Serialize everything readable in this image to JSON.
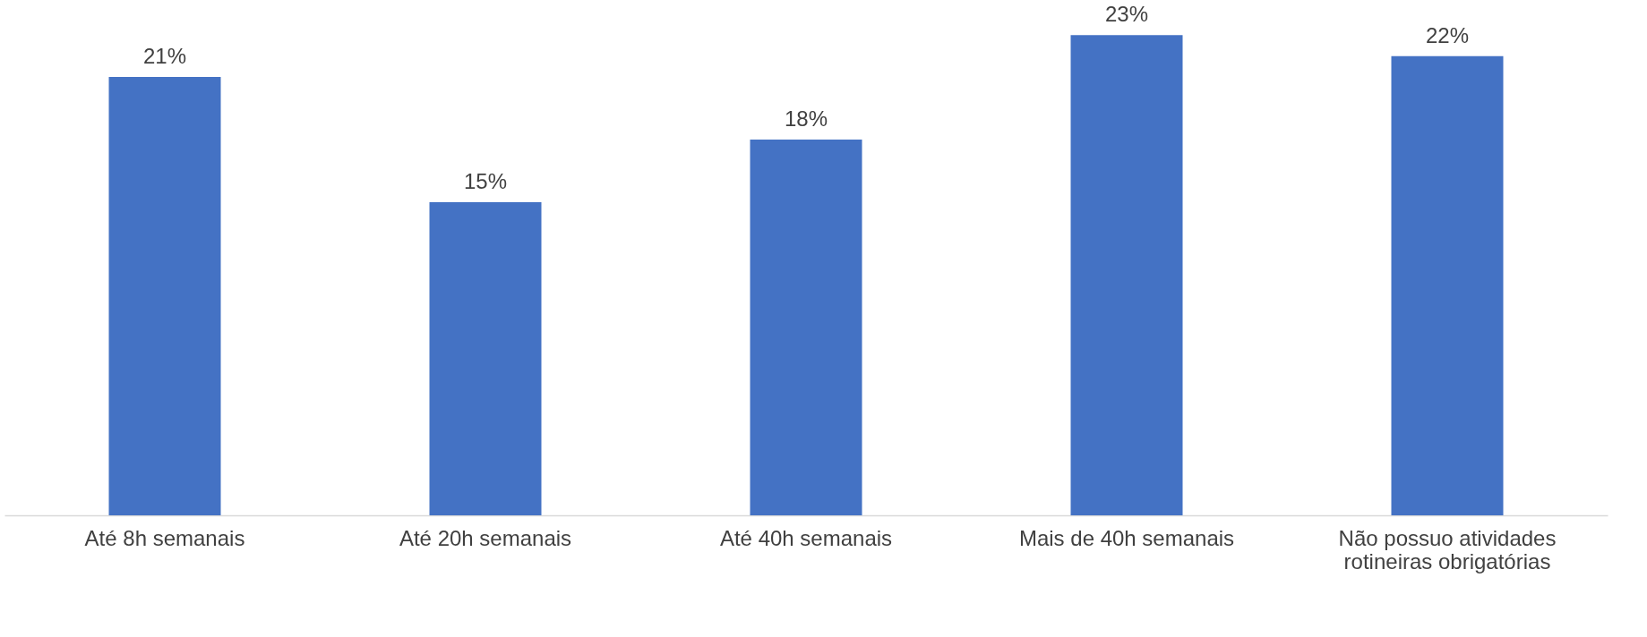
{
  "chart_data": {
    "type": "bar",
    "categories": [
      "Até 8h semanais",
      "Até 20h semanais",
      "Até 40h semanais",
      "Mais de 40h semanais",
      "Não possuo atividades rotineiras obrigatórias"
    ],
    "values": [
      21,
      15,
      18,
      23,
      22
    ],
    "value_labels": [
      "21%",
      "15%",
      "18%",
      "23%",
      "22%"
    ],
    "color": "#4472c4"
  }
}
